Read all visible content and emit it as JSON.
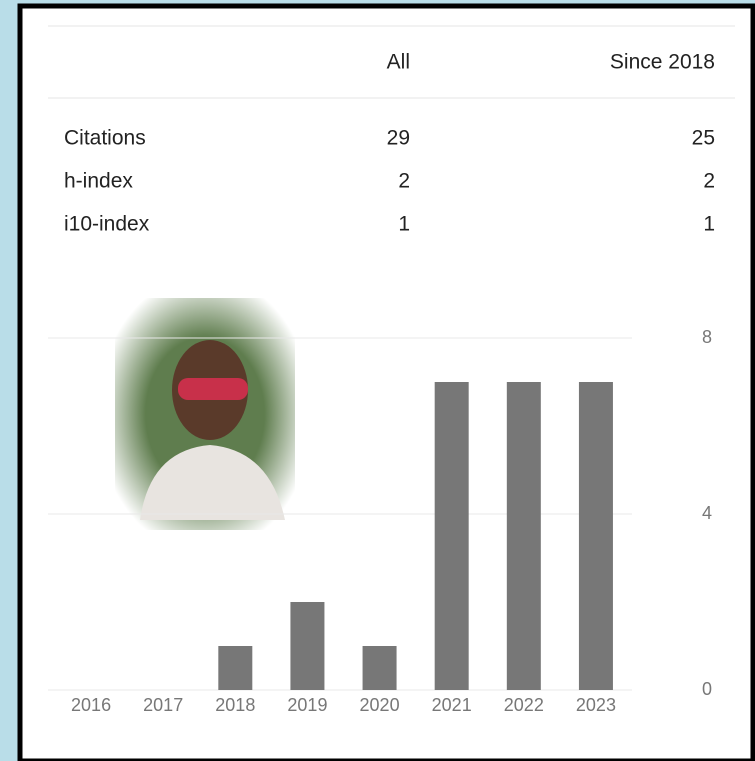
{
  "table": {
    "columns": [
      "All",
      "Since 2018"
    ],
    "rows": [
      [
        "Citations",
        29,
        25
      ],
      [
        "h-index",
        2,
        2
      ],
      [
        "i10-index",
        1,
        1
      ]
    ]
  },
  "chart_data": {
    "type": "bar",
    "categories": [
      "2016",
      "2017",
      "2018",
      "2019",
      "2020",
      "2021",
      "2022",
      "2023"
    ],
    "values": [
      0,
      0,
      1,
      2,
      1,
      7,
      7,
      7
    ],
    "color": "#777777",
    "ylim": [
      0,
      8
    ],
    "yticks": [
      0,
      4,
      8
    ],
    "grid": true
  }
}
